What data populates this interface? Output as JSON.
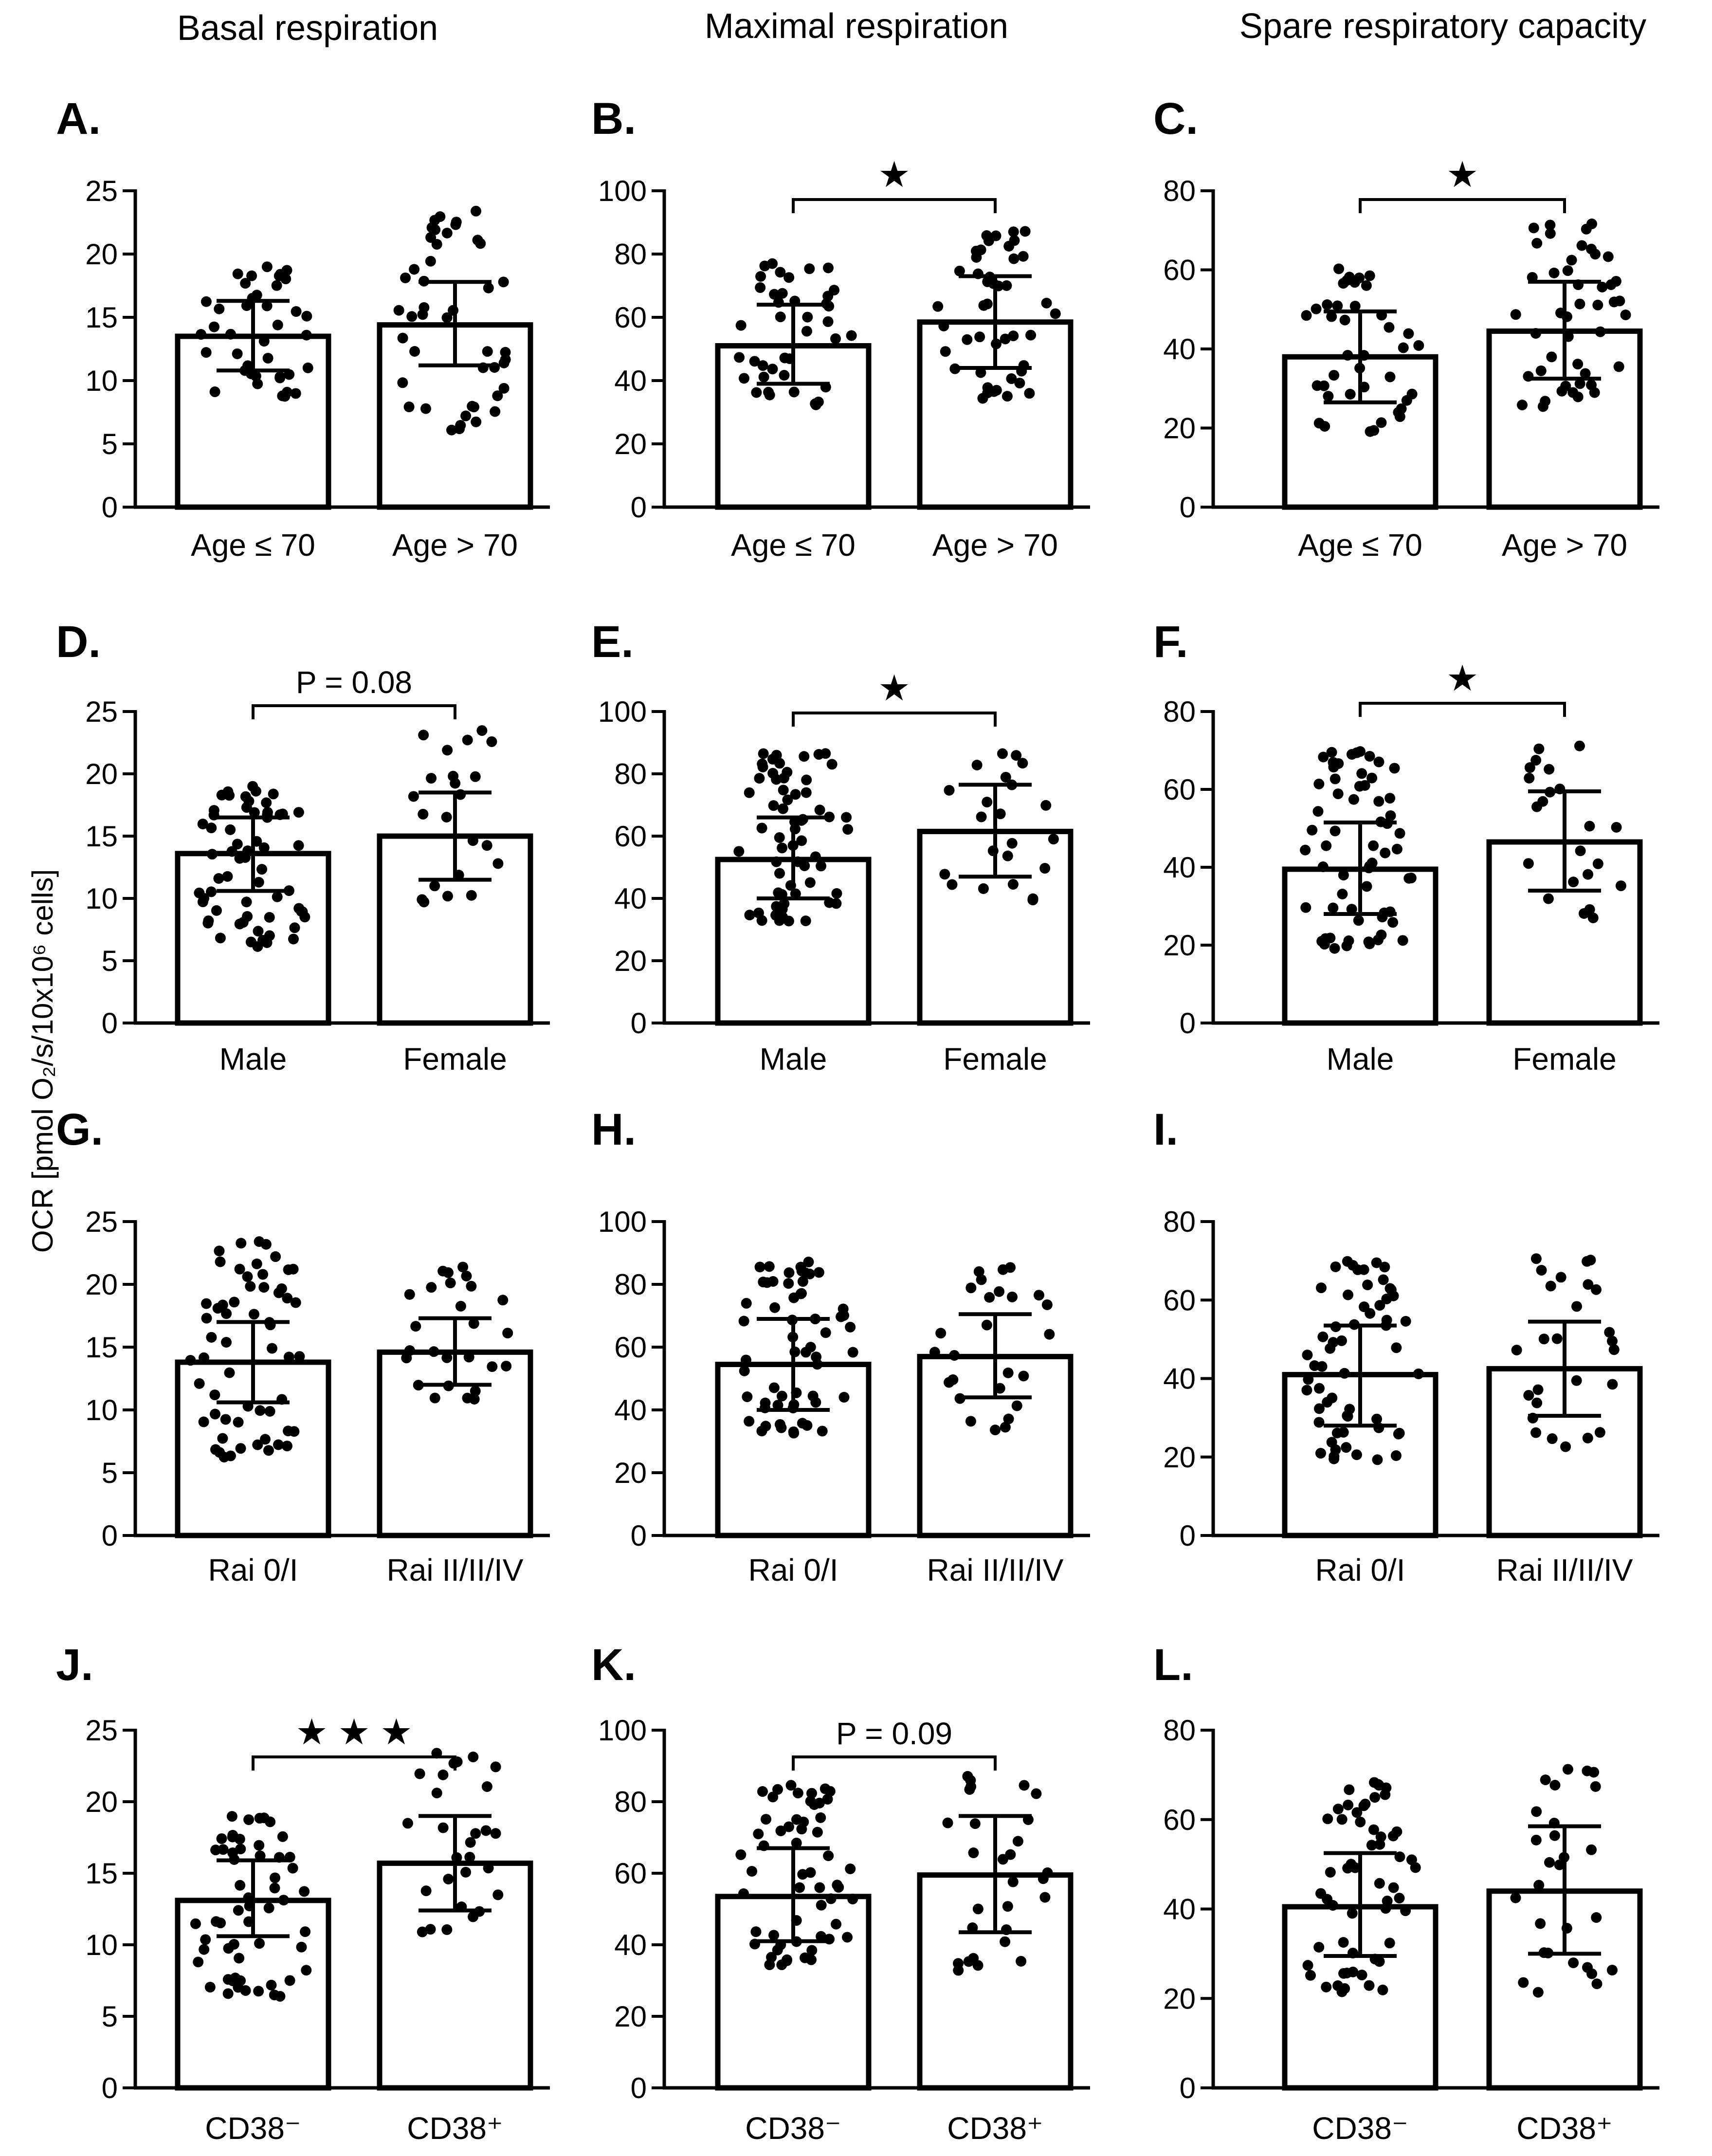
{
  "column_titles": [
    "Basal respiration",
    "Maximal respiration",
    "Spare respiratory capacity"
  ],
  "y_axis_label": "OCR [pmol O₂/s/10x10⁶ cells]",
  "chart_data": [
    {
      "type": "bar",
      "panel": "A.",
      "categories": [
        "Age ≤ 70",
        "Age > 70"
      ],
      "values": [
        13.5,
        14.4
      ],
      "error_low": [
        10.8,
        11.2
      ],
      "error_high": [
        16.3,
        17.8
      ],
      "ylim": [
        0,
        25
      ],
      "yticks": [
        0,
        5,
        10,
        15,
        20,
        25
      ],
      "ytick_labels": [
        "0",
        "5",
        "10",
        "15",
        "20",
        "25"
      ],
      "annotation": "",
      "point_ranges": [
        [
          8.7,
          19.0
        ],
        [
          6.0,
          23.5
        ]
      ],
      "point_counts": [
        40,
        45
      ]
    },
    {
      "type": "bar",
      "panel": "B.",
      "categories": [
        "Age ≤ 70",
        "Age > 70"
      ],
      "values": [
        51,
        58.5
      ],
      "error_low": [
        39,
        44
      ],
      "error_high": [
        64,
        73
      ],
      "ylim": [
        0,
        100
      ],
      "yticks": [
        0,
        20,
        40,
        60,
        80,
        100
      ],
      "ytick_labels": [
        "0",
        "20",
        "40",
        "60",
        "80",
        "100"
      ],
      "annotation": "★",
      "point_ranges": [
        [
          32,
          77
        ],
        [
          34,
          88
        ]
      ],
      "point_counts": [
        40,
        45
      ]
    },
    {
      "type": "bar",
      "panel": "C.",
      "categories": [
        "Age ≤ 70",
        "Age > 70"
      ],
      "values": [
        38,
        44.5
      ],
      "error_low": [
        26.5,
        32.5
      ],
      "error_high": [
        49.5,
        57
      ],
      "ylim": [
        0,
        80
      ],
      "yticks": [
        0,
        20,
        40,
        60,
        80
      ],
      "ytick_labels": [
        "0",
        "20",
        "40",
        "60",
        "80"
      ],
      "annotation": "★",
      "point_ranges": [
        [
          19,
          61
        ],
        [
          25,
          72
        ]
      ],
      "point_counts": [
        40,
        45
      ]
    },
    {
      "type": "bar",
      "panel": "D.",
      "categories": [
        "Male",
        "Female"
      ],
      "values": [
        13.6,
        15.0
      ],
      "error_low": [
        10.6,
        11.5
      ],
      "error_high": [
        16.5,
        18.5
      ],
      "ylim": [
        0,
        25
      ],
      "yticks": [
        0,
        5,
        10,
        15,
        20,
        25
      ],
      "ytick_labels": [
        "0",
        "5",
        "10",
        "15",
        "20",
        "25"
      ],
      "annotation": "P = 0.08",
      "point_ranges": [
        [
          6.0,
          19.0
        ],
        [
          9.5,
          23.5
        ]
      ],
      "point_counts": [
        62,
        22
      ]
    },
    {
      "type": "bar",
      "panel": "E.",
      "categories": [
        "Male",
        "Female"
      ],
      "values": [
        52.5,
        61.5
      ],
      "error_low": [
        40,
        47
      ],
      "error_high": [
        66,
        76.5
      ],
      "ylim": [
        0,
        100
      ],
      "yticks": [
        0,
        20,
        40,
        60,
        80,
        100
      ],
      "ytick_labels": [
        "0",
        "20",
        "40",
        "60",
        "80",
        "100"
      ],
      "annotation": "★",
      "point_ranges": [
        [
          32,
          88
        ],
        [
          39,
          88
        ]
      ],
      "point_counts": [
        62,
        22
      ]
    },
    {
      "type": "bar",
      "panel": "F.",
      "categories": [
        "Male",
        "Female"
      ],
      "values": [
        39.5,
        46.5
      ],
      "error_low": [
        28,
        34
      ],
      "error_high": [
        51.5,
        59.5
      ],
      "ylim": [
        0,
        80
      ],
      "yticks": [
        0,
        20,
        40,
        60,
        80
      ],
      "ytick_labels": [
        "0",
        "20",
        "40",
        "60",
        "80"
      ],
      "annotation": "★",
      "point_ranges": [
        [
          19,
          70
        ],
        [
          26,
          72
        ]
      ],
      "point_counts": [
        62,
        22
      ]
    },
    {
      "type": "bar",
      "panel": "G.",
      "categories": [
        "Rai 0/I",
        "Rai II/II/IV"
      ],
      "values": [
        13.8,
        14.6
      ],
      "error_low": [
        10.6,
        12.0
      ],
      "error_high": [
        17.0,
        17.3
      ],
      "ylim": [
        0,
        25
      ],
      "yticks": [
        0,
        5,
        10,
        15,
        20,
        25
      ],
      "ytick_labels": [
        "0",
        "5",
        "10",
        "15",
        "20",
        "25"
      ],
      "annotation": "",
      "point_ranges": [
        [
          6.0,
          23.5
        ],
        [
          10.6,
          21.4
        ]
      ],
      "point_counts": [
        58,
        26
      ]
    },
    {
      "type": "bar",
      "panel": "H.",
      "categories": [
        "Rai 0/I",
        "Rai II/II/IV"
      ],
      "values": [
        54.5,
        57
      ],
      "error_low": [
        40,
        44
      ],
      "error_high": [
        69,
        70.5
      ],
      "ylim": [
        0,
        100
      ],
      "yticks": [
        0,
        20,
        40,
        60,
        80,
        100
      ],
      "ytick_labels": [
        "0",
        "20",
        "40",
        "60",
        "80",
        "100"
      ],
      "annotation": "",
      "point_ranges": [
        [
          32,
          88
        ],
        [
          33,
          87
        ]
      ],
      "point_counts": [
        58,
        26
      ]
    },
    {
      "type": "bar",
      "panel": "I.",
      "categories": [
        "Rai 0/I",
        "Rai II/II/IV"
      ],
      "values": [
        41,
        42.5
      ],
      "error_low": [
        28,
        30.5
      ],
      "error_high": [
        53.5,
        54.5
      ],
      "ylim": [
        0,
        80
      ],
      "yticks": [
        0,
        20,
        40,
        60,
        80
      ],
      "ytick_labels": [
        "0",
        "20",
        "40",
        "60",
        "80"
      ],
      "annotation": "",
      "point_ranges": [
        [
          19,
          70
        ],
        [
          21,
          72
        ]
      ],
      "point_counts": [
        58,
        26
      ]
    },
    {
      "type": "bar",
      "panel": "J.",
      "categories": [
        "CD38⁻",
        "CD38⁺"
      ],
      "values": [
        13.1,
        15.7
      ],
      "error_low": [
        10.6,
        12.4
      ],
      "error_high": [
        15.9,
        19.0
      ],
      "ylim": [
        0,
        25
      ],
      "yticks": [
        0,
        5,
        10,
        15,
        20,
        25
      ],
      "ytick_labels": [
        "0",
        "5",
        "10",
        "15",
        "20",
        "25"
      ],
      "annotation": "★ ★ ★",
      "point_ranges": [
        [
          6.0,
          19.0
        ],
        [
          10.6,
          23.5
        ]
      ],
      "point_counts": [
        56,
        28
      ]
    },
    {
      "type": "bar",
      "panel": "K.",
      "categories": [
        "CD38⁻",
        "CD38⁺"
      ],
      "values": [
        53.5,
        59.5
      ],
      "error_low": [
        41,
        43.5
      ],
      "error_high": [
        67,
        76
      ],
      "ylim": [
        0,
        100
      ],
      "yticks": [
        0,
        20,
        40,
        60,
        80,
        100
      ],
      "ytick_labels": [
        "0",
        "20",
        "40",
        "60",
        "80",
        "100"
      ],
      "annotation": "P = 0.09",
      "point_ranges": [
        [
          34,
          86
        ],
        [
          32,
          88
        ]
      ],
      "point_counts": [
        56,
        28
      ]
    },
    {
      "type": "bar",
      "panel": "L.",
      "categories": [
        "CD38⁻",
        "CD38⁺"
      ],
      "values": [
        40.5,
        44
      ],
      "error_low": [
        29.5,
        30
      ],
      "error_high": [
        52.5,
        58.5
      ],
      "ylim": [
        0,
        80
      ],
      "yticks": [
        0,
        20,
        40,
        60,
        80
      ],
      "ytick_labels": [
        "0",
        "20",
        "40",
        "60",
        "80"
      ],
      "annotation": "",
      "point_ranges": [
        [
          21,
          69
        ],
        [
          19,
          72
        ]
      ],
      "point_counts": [
        56,
        28
      ]
    }
  ]
}
